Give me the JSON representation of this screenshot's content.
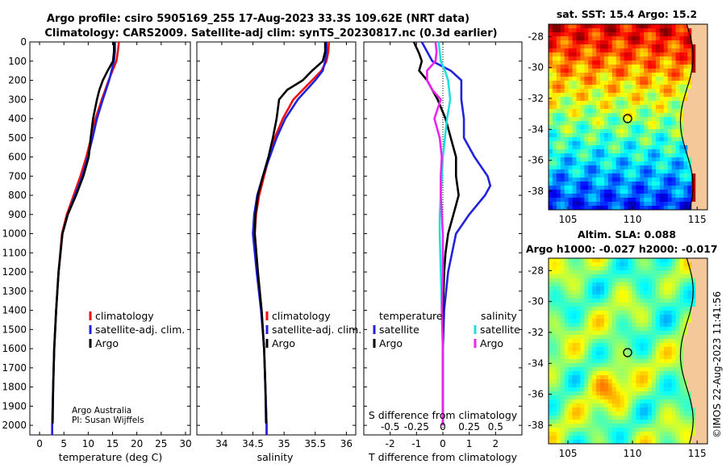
{
  "title_line1": "Argo profile: csiro 5905169_255 17-Aug-2023 33.3S 109.62E (NRT data)",
  "title_line2": "Climatology: CARS2009. Satellite-adj clim: synTS_20230817.nc (0.3d earlier)",
  "credit_line1": "Argo Australia",
  "credit_line2": "PI: Susan Wijffels",
  "timestamp": "©IMOS 22-Aug-2023 11:41:56",
  "colors": {
    "climatology": "#ee1111",
    "satellite": "#2222dd",
    "argo": "#000000",
    "sat_s": "#22dddd",
    "argo_s": "#ee22ee"
  },
  "chart_data": [
    {
      "type": "line",
      "id": "temperature",
      "xlabel": "temperature (deg C)",
      "ylabel": "",
      "xlim": [
        -2,
        31
      ],
      "ylim": [
        2050,
        0
      ],
      "xticks": [
        0,
        5,
        10,
        15,
        20,
        25,
        30
      ],
      "yticks": [
        0,
        100,
        200,
        300,
        400,
        500,
        600,
        700,
        800,
        900,
        1000,
        1100,
        1200,
        1300,
        1400,
        1500,
        1600,
        1700,
        1800,
        1900,
        2000
      ],
      "legend": [
        "climatology",
        "satellite-adj. clim.",
        "Argo"
      ],
      "legend_position": "lower-right",
      "series": [
        {
          "name": "climatology",
          "depth": [
            0,
            50,
            100,
            150,
            200,
            300,
            400,
            500,
            600,
            700,
            800,
            900,
            1000,
            1200,
            1400,
            1600,
            1800,
            2000,
            2050
          ],
          "values": [
            16.3,
            16.1,
            15.8,
            15.0,
            14.2,
            12.8,
            11.5,
            10.6,
            9.6,
            8.4,
            7.0,
            5.6,
            4.6,
            3.9,
            3.4,
            3.0,
            2.8,
            2.6,
            2.6
          ]
        },
        {
          "name": "satellite-adj. clim.",
          "depth": [
            0,
            50,
            100,
            150,
            200,
            300,
            400,
            500,
            600,
            700,
            800,
            900,
            1000,
            1200,
            1400,
            1600,
            1800,
            2000,
            2050
          ],
          "values": [
            15.5,
            15.5,
            15.3,
            14.8,
            14.3,
            13.0,
            11.8,
            10.9,
            9.9,
            8.8,
            7.3,
            5.8,
            4.7,
            3.9,
            3.4,
            3.0,
            2.8,
            2.6,
            2.6
          ]
        },
        {
          "name": "Argo",
          "depth": [
            0,
            50,
            100,
            150,
            200,
            250,
            300,
            400,
            500,
            600,
            700,
            800,
            900,
            1000,
            1200,
            1400,
            1600,
            1800,
            1990
          ],
          "values": [
            15.3,
            15.3,
            15.1,
            14.0,
            13.0,
            12.3,
            11.8,
            11.0,
            10.5,
            10.1,
            9.0,
            7.5,
            5.8,
            4.7,
            3.9,
            3.4,
            3.0,
            2.8,
            2.7
          ]
        }
      ]
    },
    {
      "type": "line",
      "id": "salinity",
      "xlabel": "salinity",
      "ylabel": "",
      "xlim": [
        33.6,
        36.15
      ],
      "ylim": [
        2050,
        0
      ],
      "xticks": [
        34,
        34.5,
        35,
        35.5,
        36
      ],
      "legend": [
        "climatology",
        "satellite-adj. clim.",
        "Argo"
      ],
      "legend_position": "lower-right",
      "series": [
        {
          "name": "climatology",
          "depth": [
            0,
            50,
            100,
            150,
            200,
            300,
            400,
            500,
            600,
            700,
            800,
            900,
            1000,
            1200,
            1400,
            1600,
            1800,
            2000,
            2050
          ],
          "values": [
            35.72,
            35.71,
            35.68,
            35.6,
            35.45,
            35.15,
            34.98,
            34.85,
            34.76,
            34.68,
            34.6,
            34.55,
            34.53,
            34.58,
            34.64,
            34.68,
            34.7,
            34.72,
            34.72
          ]
        },
        {
          "name": "satellite-adj. clim.",
          "depth": [
            0,
            50,
            100,
            150,
            200,
            300,
            400,
            500,
            600,
            700,
            800,
            900,
            1000,
            1200,
            1400,
            1600,
            1800,
            2000,
            2050
          ],
          "values": [
            35.68,
            35.68,
            35.66,
            35.62,
            35.5,
            35.22,
            35.02,
            34.88,
            34.77,
            34.66,
            34.57,
            34.52,
            34.5,
            34.56,
            34.63,
            34.68,
            34.7,
            34.72,
            34.72
          ]
        },
        {
          "name": "Argo",
          "depth": [
            0,
            50,
            100,
            150,
            200,
            250,
            300,
            400,
            500,
            600,
            700,
            800,
            900,
            1000,
            1200,
            1400,
            1600,
            1800,
            1990
          ],
          "values": [
            35.66,
            35.66,
            35.62,
            35.45,
            35.3,
            35.05,
            34.92,
            34.88,
            34.82,
            34.75,
            34.66,
            34.58,
            34.54,
            34.53,
            34.58,
            34.64,
            34.68,
            34.7,
            34.71
          ]
        }
      ]
    },
    {
      "type": "line",
      "id": "difference",
      "xlabel": "T difference from climatology",
      "top_axis_label": "S difference from climatology",
      "xlim": [
        -3,
        3
      ],
      "ylim": [
        2050,
        0
      ],
      "xticks": [
        -2,
        -1,
        0,
        1,
        2
      ],
      "s_ticks": [
        -0.5,
        -0.25,
        0,
        0.25,
        0.5
      ],
      "s_tick_labels": [
        "-0.5",
        "-0.25",
        "0",
        "0.25",
        "0.5"
      ],
      "legend_temp_title": "temperature",
      "legend_sal_title": "salinity",
      "legend_temp": [
        "satellite",
        "Argo"
      ],
      "legend_sal": [
        "satellite",
        "Argo"
      ],
      "series": [
        {
          "name": "T satellite",
          "depth": [
            0,
            50,
            100,
            150,
            200,
            300,
            400,
            500,
            600,
            700,
            750,
            800,
            900,
            1000,
            1200,
            1400,
            1600,
            1800,
            2000
          ],
          "values": [
            -0.8,
            -0.6,
            -0.4,
            0.3,
            0.7,
            0.7,
            0.8,
            0.8,
            1.2,
            1.7,
            1.8,
            1.6,
            1.0,
            0.5,
            0.2,
            0.05,
            0.0,
            0.0,
            0.0
          ]
        },
        {
          "name": "T Argo",
          "depth": [
            0,
            30,
            60,
            100,
            150,
            200,
            250,
            300,
            400,
            500,
            600,
            700,
            800,
            900,
            1000,
            1100,
            1200,
            1400,
            1600,
            1800,
            2000
          ],
          "values": [
            -1.1,
            -1.0,
            -0.9,
            -0.8,
            -0.9,
            -0.6,
            -0.4,
            -0.2,
            0.1,
            0.3,
            0.5,
            0.5,
            0.6,
            0.4,
            0.2,
            0.1,
            0.05,
            0.0,
            0.0,
            0.0,
            0.0
          ]
        },
        {
          "name": "S satellite",
          "depth": [
            0,
            50,
            100,
            150,
            200,
            300,
            400,
            500,
            600,
            700,
            800,
            900,
            1000,
            1200,
            1400,
            1600,
            1800,
            2000
          ],
          "values": [
            -0.04,
            -0.03,
            -0.02,
            0.02,
            0.05,
            0.07,
            0.04,
            0.02,
            0.0,
            -0.01,
            -0.02,
            -0.03,
            -0.03,
            -0.02,
            -0.01,
            0.0,
            0.0,
            0.0
          ]
        },
        {
          "name": "S Argo",
          "depth": [
            0,
            50,
            100,
            150,
            200,
            250,
            300,
            400,
            500,
            600,
            700,
            800,
            900,
            1000,
            1200,
            1400,
            1600,
            1800,
            2000
          ],
          "values": [
            -0.07,
            -0.06,
            -0.07,
            -0.15,
            -0.15,
            -0.1,
            -0.02,
            -0.08,
            -0.03,
            -0.01,
            -0.02,
            -0.02,
            -0.01,
            0.0,
            0.0,
            -0.01,
            0.0,
            0.0,
            0.0
          ]
        }
      ]
    },
    {
      "type": "heatmap",
      "id": "sst_map",
      "title": "sat. SST: 15.4 Argo: 15.2",
      "xticks": [
        105,
        110,
        115
      ],
      "yticks": [
        -28,
        -30,
        -32,
        -34,
        -36,
        -38
      ],
      "xlim": [
        103.5,
        115.8
      ],
      "ylim": [
        -39.2,
        -27.2
      ],
      "marker": {
        "lon": 109.62,
        "lat": -33.3
      }
    },
    {
      "type": "heatmap",
      "id": "sla_map",
      "title_line1": "Altim. SLA: 0.088",
      "title_line2": "Argo h1000: -0.027 h2000: -0.017",
      "xticks": [
        105,
        110,
        115
      ],
      "yticks": [
        -28,
        -30,
        -32,
        -34,
        -36,
        -38
      ],
      "xlim": [
        103.5,
        115.8
      ],
      "ylim": [
        -39.2,
        -27.2
      ],
      "marker": {
        "lon": 109.62,
        "lat": -33.3
      }
    }
  ]
}
